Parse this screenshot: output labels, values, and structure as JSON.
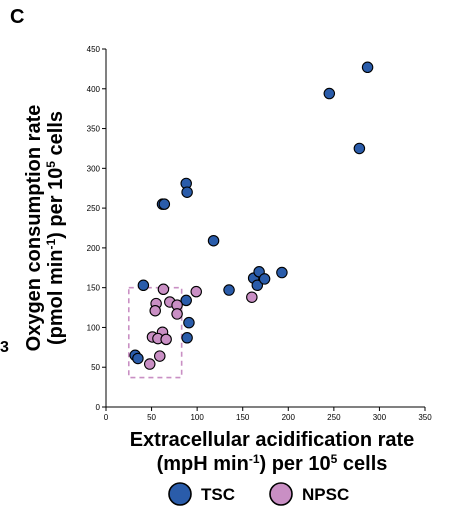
{
  "panel_label": "C",
  "edge_text": "3",
  "chart_data": {
    "type": "scatter",
    "title": "",
    "xlabel": {
      "line1": "Extracellular acidification rate",
      "line2_prefix": "(mpH min",
      "line2_sup": "-1",
      "line2_mid": ") per 10",
      "line2_sup2": "5",
      "line2_suffix": " cells"
    },
    "ylabel": {
      "line1": "Oxygen consumption rate",
      "line2_prefix": "(pmol min",
      "line2_sup": "-1",
      "line2_mid": ") per 10",
      "line2_sup2": "5",
      "line2_suffix": " cells"
    },
    "xlim": [
      0,
      350
    ],
    "ylim": [
      0,
      450
    ],
    "x_ticks": [
      0,
      50,
      100,
      150,
      200,
      250,
      300,
      350
    ],
    "y_ticks": [
      0,
      50,
      100,
      150,
      200,
      250,
      300,
      350,
      400,
      450
    ],
    "grid": false,
    "legend_position": "bottom",
    "series": [
      {
        "name": "TSC",
        "color": "#2a5caa",
        "points": [
          [
            41,
            153
          ],
          [
            32,
            65
          ],
          [
            35,
            61
          ],
          [
            88,
            134
          ],
          [
            91,
            106
          ],
          [
            89,
            87
          ],
          [
            62,
            255
          ],
          [
            64,
            255
          ],
          [
            88,
            281
          ],
          [
            89,
            270
          ],
          [
            118,
            209
          ],
          [
            135,
            147
          ],
          [
            162,
            162
          ],
          [
            168,
            170
          ],
          [
            166,
            153
          ],
          [
            174,
            161
          ],
          [
            193,
            169
          ],
          [
            245,
            394
          ],
          [
            287,
            427
          ],
          [
            278,
            325
          ]
        ]
      },
      {
        "name": "NPSC",
        "color": "#c98fc4",
        "points": [
          [
            63,
            148
          ],
          [
            70,
            132
          ],
          [
            99,
            145
          ],
          [
            78,
            128
          ],
          [
            55,
            130
          ],
          [
            54,
            121
          ],
          [
            78,
            117
          ],
          [
            62,
            94
          ],
          [
            51,
            88
          ],
          [
            57,
            86
          ],
          [
            66,
            85
          ],
          [
            59,
            64
          ],
          [
            48,
            54
          ],
          [
            160,
            138
          ]
        ]
      }
    ],
    "annotation": {
      "type": "dashed-box",
      "color": "#c98fc4",
      "x_range": [
        25,
        83
      ],
      "y_range": [
        37,
        150
      ]
    }
  }
}
